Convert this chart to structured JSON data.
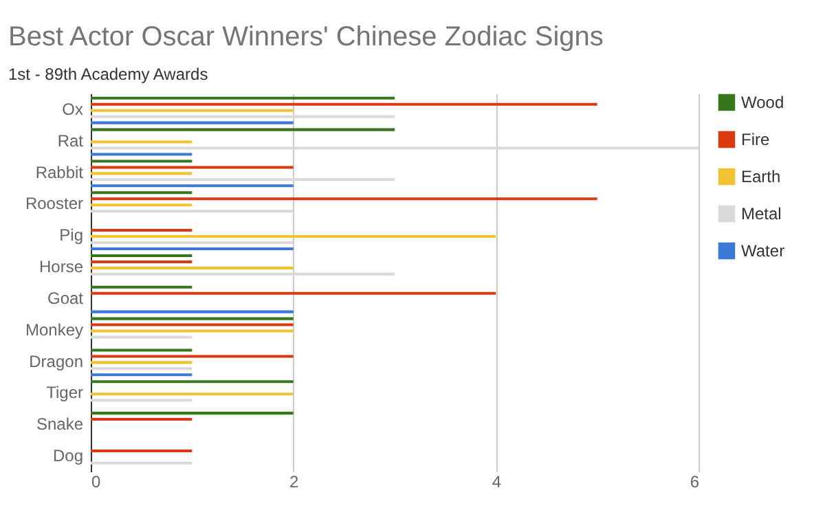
{
  "chart_data": {
    "type": "bar",
    "orientation": "horizontal",
    "title": "Best Actor Oscar Winners' Chinese Zodiac Signs",
    "subtitle": "1st - 89th Academy Awards",
    "categories": [
      "Ox",
      "Rat",
      "Rabbit",
      "Rooster",
      "Pig",
      "Horse",
      "Goat",
      "Monkey",
      "Dragon",
      "Tiger",
      "Snake",
      "Dog"
    ],
    "series": [
      {
        "name": "Wood",
        "color": "#38761d",
        "values": [
          3,
          3,
          1,
          1,
          0,
          1,
          1,
          2,
          1,
          2,
          2,
          0
        ]
      },
      {
        "name": "Fire",
        "color": "#dc3912",
        "values": [
          5,
          0,
          2,
          5,
          1,
          1,
          4,
          2,
          2,
          0,
          1,
          1
        ]
      },
      {
        "name": "Earth",
        "color": "#f1c232",
        "values": [
          2,
          1,
          1,
          1,
          4,
          2,
          0,
          2,
          1,
          2,
          0,
          0
        ]
      },
      {
        "name": "Metal",
        "color": "#d9d9d9",
        "values": [
          3,
          6,
          3,
          2,
          2,
          3,
          0,
          1,
          1,
          1,
          0,
          1
        ]
      },
      {
        "name": "Water",
        "color": "#3c78d8",
        "values": [
          2,
          1,
          2,
          0,
          2,
          0,
          2,
          0,
          1,
          0,
          0,
          0
        ]
      }
    ],
    "xlim": [
      0,
      6
    ],
    "xticks": [
      0,
      2,
      4,
      6
    ],
    "grid": "x",
    "legend": "top right"
  }
}
